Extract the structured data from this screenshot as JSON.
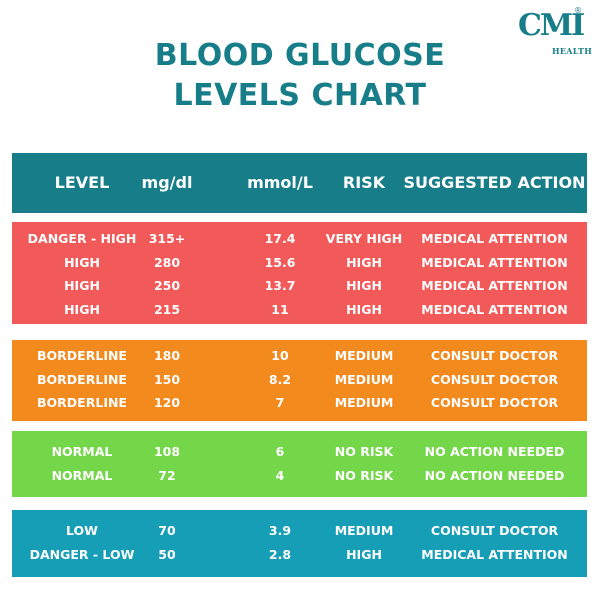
{
  "title": {
    "line1": "BLOOD GLUCOSE",
    "line2": "LEVELS CHART"
  },
  "logo": {
    "mark": "CMI",
    "sub": "HEALTH",
    "reg": "®"
  },
  "colors": {
    "header": "#177e89",
    "danger_high": "#f25a5a",
    "borderline": "#f28a1e",
    "normal": "#74d649",
    "low": "#169eb7"
  },
  "table": {
    "headers": [
      "LEVEL",
      "mg/dl",
      "mmol/L",
      "RISK",
      "SUGGESTED ACTION"
    ],
    "groups": [
      {
        "rows": [
          [
            "DANGER - HIGH",
            "315+",
            "17.4",
            "VERY HIGH",
            "MEDICAL ATTENTION"
          ],
          [
            "HIGH",
            "280",
            "15.6",
            "HIGH",
            "MEDICAL ATTENTION"
          ],
          [
            "HIGH",
            "250",
            "13.7",
            "HIGH",
            "MEDICAL ATTENTION"
          ],
          [
            "HIGH",
            "215",
            "11",
            "HIGH",
            "MEDICAL ATTENTION"
          ]
        ]
      },
      {
        "rows": [
          [
            "BORDERLINE",
            "180",
            "10",
            "MEDIUM",
            "CONSULT DOCTOR"
          ],
          [
            "BORDERLINE",
            "150",
            "8.2",
            "MEDIUM",
            "CONSULT DOCTOR"
          ],
          [
            "BORDERLINE",
            "120",
            "7",
            "MEDIUM",
            "CONSULT DOCTOR"
          ]
        ]
      },
      {
        "rows": [
          [
            "NORMAL",
            "108",
            "6",
            "NO RISK",
            "NO ACTION NEEDED"
          ],
          [
            "NORMAL",
            "72",
            "4",
            "NO RISK",
            "NO ACTION NEEDED"
          ]
        ]
      },
      {
        "rows": [
          [
            "LOW",
            "70",
            "3.9",
            "MEDIUM",
            "CONSULT DOCTOR"
          ],
          [
            "DANGER - LOW",
            "50",
            "2.8",
            "HIGH",
            "MEDICAL ATTENTION"
          ]
        ]
      }
    ]
  }
}
